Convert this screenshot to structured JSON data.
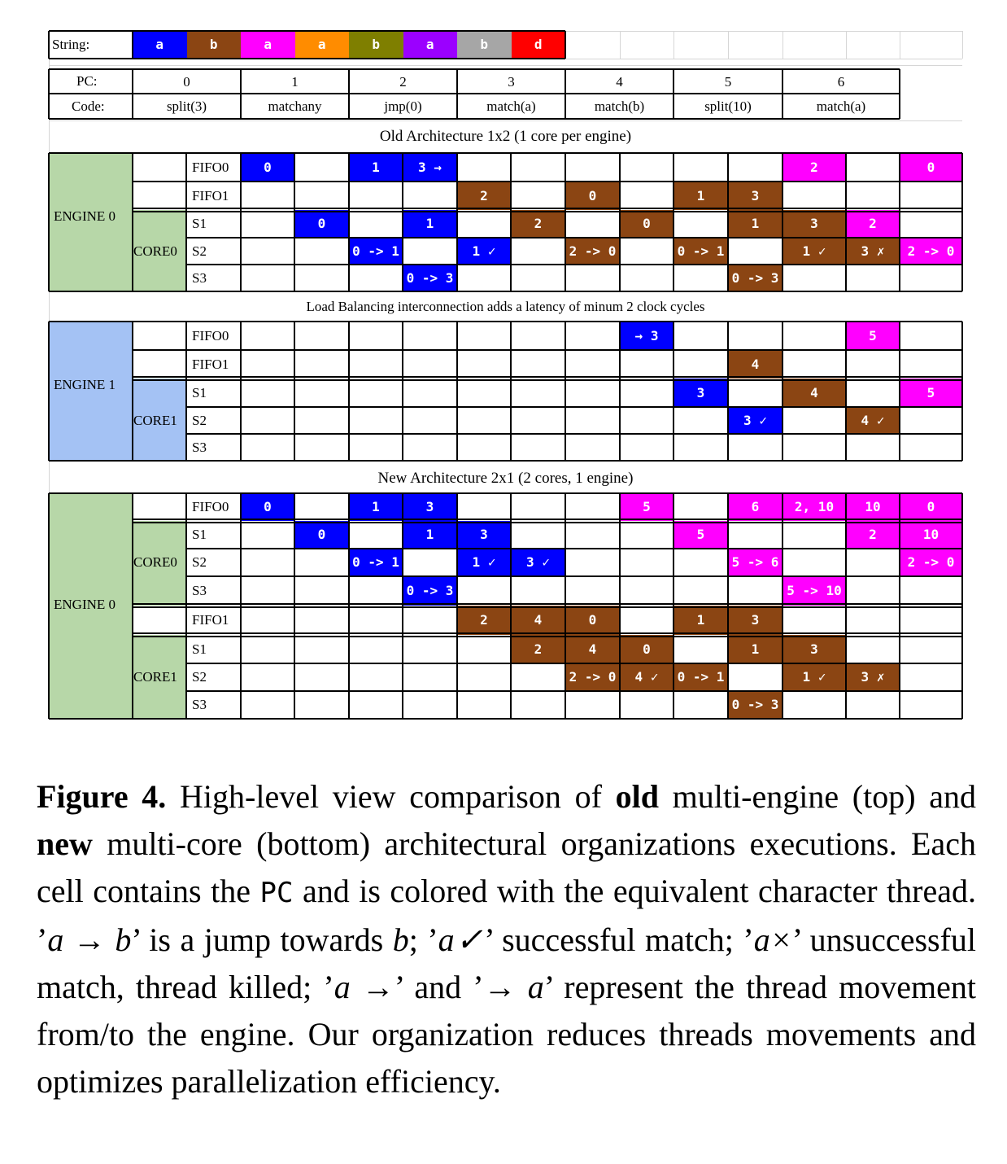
{
  "string_row": {
    "label": "String:",
    "chars": [
      {
        "ch": "a",
        "color": "#0000FF"
      },
      {
        "ch": "b",
        "color": "#8B4513"
      },
      {
        "ch": "a",
        "color": "#FF00FF"
      },
      {
        "ch": "a",
        "color": "#FF8C00"
      },
      {
        "ch": "b",
        "color": "#7F7F00"
      },
      {
        "ch": "a",
        "color": "#9B00FF"
      },
      {
        "ch": "b",
        "color": "#A6A6A6"
      },
      {
        "ch": "d",
        "color": "#FF0000"
      }
    ]
  },
  "program": {
    "pc_label": "PC:",
    "code_label": "Code:",
    "pcs": [
      "0",
      "1",
      "2",
      "3",
      "4",
      "5",
      "6"
    ],
    "codes": [
      "split(3)",
      "matchany",
      "jmp(0)",
      "match(a)",
      "match(b)",
      "split(10)",
      "match(a)"
    ]
  },
  "colors": {
    "blue": "#0000FF",
    "brown": "#8B4513",
    "magenta": "#FF00FF",
    "engine_green": "#B7D7A8",
    "engine_blue": "#A4C2F4"
  },
  "sections": {
    "old_title": "Old Architecture 1x2 (1 core per engine)",
    "lb_note": "Load Balancing interconnection adds a latency of minum 2 clock cycles",
    "new_title": "New Architecture 2x1 (2 cores, 1 engine)"
  },
  "labels": {
    "engine0": "ENGINE 0",
    "engine1": "ENGINE 1",
    "core0": "CORE0",
    "core1": "CORE1",
    "fifo0": "FIFO0",
    "fifo1": "FIFO1",
    "s1": "S1",
    "s2": "S2",
    "s3": "S3"
  },
  "old_arch": {
    "engine0": {
      "fifo0": [
        [
          "0",
          "blue"
        ],
        [
          "",
          ""
        ],
        [
          "1",
          "blue"
        ],
        [
          "3 →",
          "blue"
        ],
        [
          "",
          ""
        ],
        [
          "",
          ""
        ],
        [
          "",
          ""
        ],
        [
          "",
          ""
        ],
        [
          "",
          ""
        ],
        [
          "",
          ""
        ],
        [
          "2",
          "magenta"
        ],
        [
          "",
          ""
        ],
        [
          "0",
          "magenta"
        ]
      ],
      "fifo1": [
        [
          "",
          ""
        ],
        [
          "",
          ""
        ],
        [
          "",
          ""
        ],
        [
          "",
          ""
        ],
        [
          "2",
          "brown"
        ],
        [
          "",
          ""
        ],
        [
          "0",
          "brown"
        ],
        [
          "",
          ""
        ],
        [
          "1",
          "brown"
        ],
        [
          "3",
          "brown"
        ],
        [
          "",
          ""
        ],
        [
          "",
          ""
        ],
        [
          "",
          ""
        ]
      ],
      "s1": [
        [
          "",
          ""
        ],
        [
          "0",
          "blue"
        ],
        [
          "",
          ""
        ],
        [
          "1",
          "blue"
        ],
        [
          "",
          ""
        ],
        [
          "2",
          "brown"
        ],
        [
          "",
          ""
        ],
        [
          "0",
          "brown"
        ],
        [
          "",
          ""
        ],
        [
          "1",
          "brown"
        ],
        [
          "3",
          "brown"
        ],
        [
          "2",
          "magenta"
        ],
        [
          "",
          ""
        ]
      ],
      "s2": [
        [
          "",
          ""
        ],
        [
          "",
          ""
        ],
        [
          "0 -> 1",
          "blue"
        ],
        [
          "",
          ""
        ],
        [
          "1 ✓",
          "blue"
        ],
        [
          "",
          ""
        ],
        [
          "2 -> 0",
          "brown"
        ],
        [
          "",
          ""
        ],
        [
          "0 -> 1",
          "brown"
        ],
        [
          "",
          ""
        ],
        [
          "1 ✓",
          "brown"
        ],
        [
          "3 ✗",
          "brown"
        ],
        [
          "2 -> 0",
          "magenta"
        ]
      ],
      "s3": [
        [
          "",
          ""
        ],
        [
          "",
          ""
        ],
        [
          "",
          ""
        ],
        [
          "0 -> 3",
          "blue"
        ],
        [
          "",
          ""
        ],
        [
          "",
          ""
        ],
        [
          "",
          ""
        ],
        [
          "",
          ""
        ],
        [
          "",
          ""
        ],
        [
          "0 -> 3",
          "brown"
        ],
        [
          "",
          ""
        ],
        [
          "",
          ""
        ],
        [
          "",
          ""
        ]
      ]
    },
    "engine1": {
      "fifo0": [
        [
          "",
          ""
        ],
        [
          "",
          ""
        ],
        [
          "",
          ""
        ],
        [
          "",
          ""
        ],
        [
          "",
          ""
        ],
        [
          "",
          ""
        ],
        [
          "",
          ""
        ],
        [
          "→ 3",
          "blue"
        ],
        [
          "",
          ""
        ],
        [
          "",
          ""
        ],
        [
          "",
          ""
        ],
        [
          "5",
          "magenta"
        ],
        [
          "",
          ""
        ]
      ],
      "fifo1": [
        [
          "",
          ""
        ],
        [
          "",
          ""
        ],
        [
          "",
          ""
        ],
        [
          "",
          ""
        ],
        [
          "",
          ""
        ],
        [
          "",
          ""
        ],
        [
          "",
          ""
        ],
        [
          "",
          ""
        ],
        [
          "",
          ""
        ],
        [
          "4",
          "brown"
        ],
        [
          "",
          ""
        ],
        [
          "",
          ""
        ],
        [
          "",
          ""
        ]
      ],
      "s1": [
        [
          "",
          ""
        ],
        [
          "",
          ""
        ],
        [
          "",
          ""
        ],
        [
          "",
          ""
        ],
        [
          "",
          ""
        ],
        [
          "",
          ""
        ],
        [
          "",
          ""
        ],
        [
          "",
          ""
        ],
        [
          "3",
          "blue"
        ],
        [
          "",
          ""
        ],
        [
          "4",
          "brown"
        ],
        [
          "",
          ""
        ],
        [
          "5",
          "magenta"
        ]
      ],
      "s2": [
        [
          "",
          ""
        ],
        [
          "",
          ""
        ],
        [
          "",
          ""
        ],
        [
          "",
          ""
        ],
        [
          "",
          ""
        ],
        [
          "",
          ""
        ],
        [
          "",
          ""
        ],
        [
          "",
          ""
        ],
        [
          "",
          ""
        ],
        [
          "3 ✓",
          "blue"
        ],
        [
          "",
          ""
        ],
        [
          "4 ✓",
          "brown"
        ],
        [
          "",
          ""
        ]
      ],
      "s3": [
        [
          "",
          ""
        ],
        [
          "",
          ""
        ],
        [
          "",
          ""
        ],
        [
          "",
          ""
        ],
        [
          "",
          ""
        ],
        [
          "",
          ""
        ],
        [
          "",
          ""
        ],
        [
          "",
          ""
        ],
        [
          "",
          ""
        ],
        [
          "",
          ""
        ],
        [
          "",
          ""
        ],
        [
          "",
          ""
        ],
        [
          "",
          ""
        ]
      ]
    }
  },
  "new_arch": {
    "fifo0": [
      [
        "0",
        "blue"
      ],
      [
        "",
        ""
      ],
      [
        "1",
        "blue"
      ],
      [
        "3",
        "blue"
      ],
      [
        "",
        ""
      ],
      [
        "",
        ""
      ],
      [
        "",
        ""
      ],
      [
        "5",
        "magenta"
      ],
      [
        "",
        ""
      ],
      [
        "6",
        "magenta"
      ],
      [
        "2, 10",
        "magenta"
      ],
      [
        "10",
        "magenta"
      ],
      [
        "0",
        "magenta"
      ]
    ],
    "core0_s1": [
      [
        "",
        ""
      ],
      [
        "0",
        "blue"
      ],
      [
        "",
        ""
      ],
      [
        "1",
        "blue"
      ],
      [
        "3",
        "blue"
      ],
      [
        "",
        ""
      ],
      [
        "",
        ""
      ],
      [
        "",
        ""
      ],
      [
        "5",
        "magenta"
      ],
      [
        "",
        ""
      ],
      [
        "",
        ""
      ],
      [
        "2",
        "magenta"
      ],
      [
        "10",
        "magenta"
      ]
    ],
    "core0_s2": [
      [
        "",
        ""
      ],
      [
        "",
        ""
      ],
      [
        "0 -> 1",
        "blue"
      ],
      [
        "",
        ""
      ],
      [
        "1 ✓",
        "blue"
      ],
      [
        "3 ✓",
        "blue"
      ],
      [
        "",
        ""
      ],
      [
        "",
        ""
      ],
      [
        "",
        ""
      ],
      [
        "5 -> 6",
        "magenta"
      ],
      [
        "",
        ""
      ],
      [
        "",
        ""
      ],
      [
        "2 -> 0",
        "magenta"
      ]
    ],
    "core0_s3": [
      [
        "",
        ""
      ],
      [
        "",
        ""
      ],
      [
        "",
        ""
      ],
      [
        "0 -> 3",
        "blue"
      ],
      [
        "",
        ""
      ],
      [
        "",
        ""
      ],
      [
        "",
        ""
      ],
      [
        "",
        ""
      ],
      [
        "",
        ""
      ],
      [
        "",
        ""
      ],
      [
        "5 -> 10",
        "magenta"
      ],
      [
        "",
        ""
      ],
      [
        "",
        ""
      ]
    ],
    "fifo1": [
      [
        "",
        ""
      ],
      [
        "",
        ""
      ],
      [
        "",
        ""
      ],
      [
        "",
        ""
      ],
      [
        "2",
        "brown"
      ],
      [
        "4",
        "brown"
      ],
      [
        "0",
        "brown"
      ],
      [
        "",
        ""
      ],
      [
        "1",
        "brown"
      ],
      [
        "3",
        "brown"
      ],
      [
        "",
        ""
      ],
      [
        "",
        ""
      ],
      [
        "",
        ""
      ]
    ],
    "core1_s1": [
      [
        "",
        ""
      ],
      [
        "",
        ""
      ],
      [
        "",
        ""
      ],
      [
        "",
        ""
      ],
      [
        "",
        ""
      ],
      [
        "2",
        "brown"
      ],
      [
        "4",
        "brown"
      ],
      [
        "0",
        "brown"
      ],
      [
        "",
        ""
      ],
      [
        "1",
        "brown"
      ],
      [
        "3",
        "brown"
      ],
      [
        "",
        ""
      ],
      [
        "",
        ""
      ]
    ],
    "core1_s2": [
      [
        "",
        ""
      ],
      [
        "",
        ""
      ],
      [
        "",
        ""
      ],
      [
        "",
        ""
      ],
      [
        "",
        ""
      ],
      [
        "",
        ""
      ],
      [
        "2 -> 0",
        "brown"
      ],
      [
        "4 ✓",
        "brown"
      ],
      [
        "0 -> 1",
        "brown"
      ],
      [
        "",
        ""
      ],
      [
        "1 ✓",
        "brown"
      ],
      [
        "3 ✗",
        "brown"
      ],
      [
        "",
        ""
      ]
    ],
    "core1_s3": [
      [
        "",
        ""
      ],
      [
        "",
        ""
      ],
      [
        "",
        ""
      ],
      [
        "",
        ""
      ],
      [
        "",
        ""
      ],
      [
        "",
        ""
      ],
      [
        "",
        ""
      ],
      [
        "",
        ""
      ],
      [
        "",
        ""
      ],
      [
        "0 -> 3",
        "brown"
      ],
      [
        "",
        ""
      ],
      [
        "",
        ""
      ],
      [
        "",
        ""
      ]
    ]
  },
  "caption": {
    "fig_label": "Figure 4.",
    "t1": " High-level view comparison of ",
    "b1": "old",
    "t2": " multi-engine (top) and ",
    "b2": "new",
    "t3": " multi-core (bottom) architectural organizations executions. Each cell contains the ",
    "pc": "PC",
    "t4": " and is colored with the equivalent character thread. ’",
    "m1": "a → b",
    "t5": "’ is a jump towards ",
    "m2": "b",
    "t6": "; ’",
    "m3": "a✓",
    "t7": "’ successful match; ’",
    "m4": "a×",
    "t8": "’ unsuccessful match, thread killed; ’",
    "m5": "a →",
    "t9": "’ and ’",
    "m6": "→ a",
    "t10": "’ represent the thread movement from/to the engine. Our organization reduces threads movements and optimizes parallelization efficiency."
  }
}
